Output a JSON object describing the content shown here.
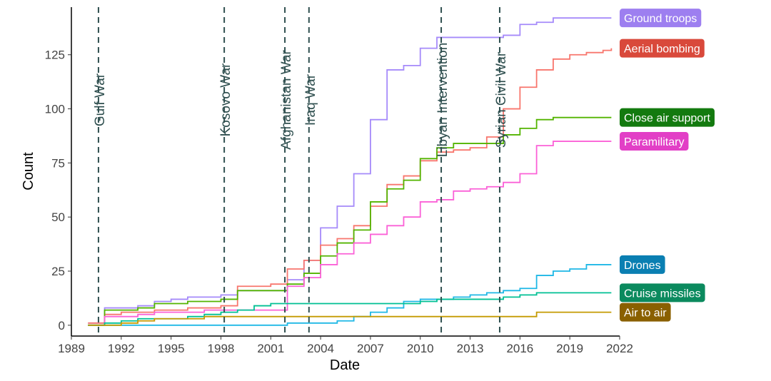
{
  "chart_data": {
    "type": "step",
    "x_label": "Date",
    "y_label": "Count",
    "xlim": [
      1989,
      2022
    ],
    "ylim": [
      -5,
      147
    ],
    "xticks": [
      1989,
      1992,
      1995,
      1998,
      2001,
      2004,
      2007,
      2010,
      2013,
      2016,
      2019,
      2022
    ],
    "yticks": [
      0,
      25,
      50,
      75,
      100,
      125
    ],
    "grid": false,
    "x": [
      1990,
      1991,
      1992,
      1993,
      1994,
      1995,
      1996,
      1997,
      1998,
      1999,
      2000,
      2001,
      2002,
      2003,
      2004,
      2005,
      2006,
      2007,
      2008,
      2009,
      2010,
      2011,
      2012,
      2013,
      2014,
      2015,
      2016,
      2017,
      2018,
      2019,
      2020,
      2021,
      2021.5
    ],
    "series": [
      {
        "name": "Ground troops",
        "color": "#a58afa",
        "label_color": "#9d7ff0",
        "values": [
          1,
          8,
          8,
          9,
          11,
          12,
          13,
          13,
          14,
          16,
          16,
          16,
          21,
          30,
          45,
          55,
          70,
          95,
          118,
          120,
          128,
          133,
          133,
          133,
          133,
          134,
          139,
          140,
          142,
          142,
          142,
          142,
          142
        ]
      },
      {
        "name": "Aerial bombing",
        "color": "#f8766d",
        "label_color": "#d9493b",
        "values": [
          1,
          5,
          6,
          6,
          7,
          7,
          8,
          8,
          9,
          18,
          18,
          19,
          26,
          30,
          37,
          40,
          46,
          55,
          65,
          69,
          76,
          80,
          81,
          82,
          87,
          100,
          110,
          118,
          123,
          125,
          126,
          127,
          128
        ]
      },
      {
        "name": "Close air support",
        "color": "#53b400",
        "label_color": "#137a0f",
        "values": [
          0,
          7,
          7,
          8,
          10,
          10,
          11,
          11,
          12,
          16,
          16,
          16,
          19,
          24,
          32,
          38,
          44,
          57,
          63,
          67,
          77,
          82,
          84,
          84,
          84,
          88,
          91,
          95,
          96,
          96,
          96,
          96,
          96
        ]
      },
      {
        "name": "Paramilitary",
        "color": "#fb61d7",
        "label_color": "#e23fc6",
        "values": [
          0,
          4,
          4,
          5,
          6,
          6,
          6,
          7,
          7,
          7,
          7,
          7,
          18,
          22,
          28,
          33,
          38,
          42,
          46,
          50,
          57,
          58,
          62,
          63,
          64,
          66,
          70,
          83,
          85,
          85,
          85,
          85,
          85
        ]
      },
      {
        "name": "Drones",
        "color": "#1fb8e6",
        "label_color": "#0a7fb2",
        "values": [
          0,
          0,
          0,
          0,
          0,
          0,
          0,
          0,
          0,
          0,
          0,
          0,
          1,
          1,
          1,
          2,
          4,
          6,
          8,
          11,
          12,
          12,
          13,
          14,
          15,
          16,
          17,
          23,
          25,
          26,
          28,
          28,
          28
        ]
      },
      {
        "name": "Cruise missiles",
        "color": "#00c094",
        "label_color": "#0b8a5e",
        "values": [
          0,
          1,
          2,
          3,
          3,
          3,
          4,
          5,
          6,
          7,
          9,
          10,
          10,
          10,
          10,
          10,
          10,
          10,
          10,
          10,
          11,
          12,
          12,
          12,
          12,
          13,
          14,
          15,
          15,
          15,
          15,
          15,
          15
        ]
      },
      {
        "name": "Air to air",
        "color": "#c49a00",
        "label_color": "#8a6000",
        "values": [
          0,
          0,
          1,
          2,
          3,
          3,
          3,
          4,
          4,
          4,
          4,
          4,
          4,
          4,
          4,
          4,
          4,
          4,
          4,
          4,
          4,
          4,
          4,
          4,
          4,
          4,
          4,
          6,
          6,
          6,
          6,
          6,
          6
        ]
      }
    ],
    "events": [
      {
        "label": "Gulf War",
        "x": 1990.63
      },
      {
        "label": "Kosovo War",
        "x": 1998.2
      },
      {
        "label": "Afghanistan War",
        "x": 2001.85
      },
      {
        "label": "Iraq War",
        "x": 2003.3
      },
      {
        "label": "Libyan Intervention",
        "x": 2011.26
      },
      {
        "label": "Syrian Civil War",
        "x": 2014.78
      }
    ]
  }
}
